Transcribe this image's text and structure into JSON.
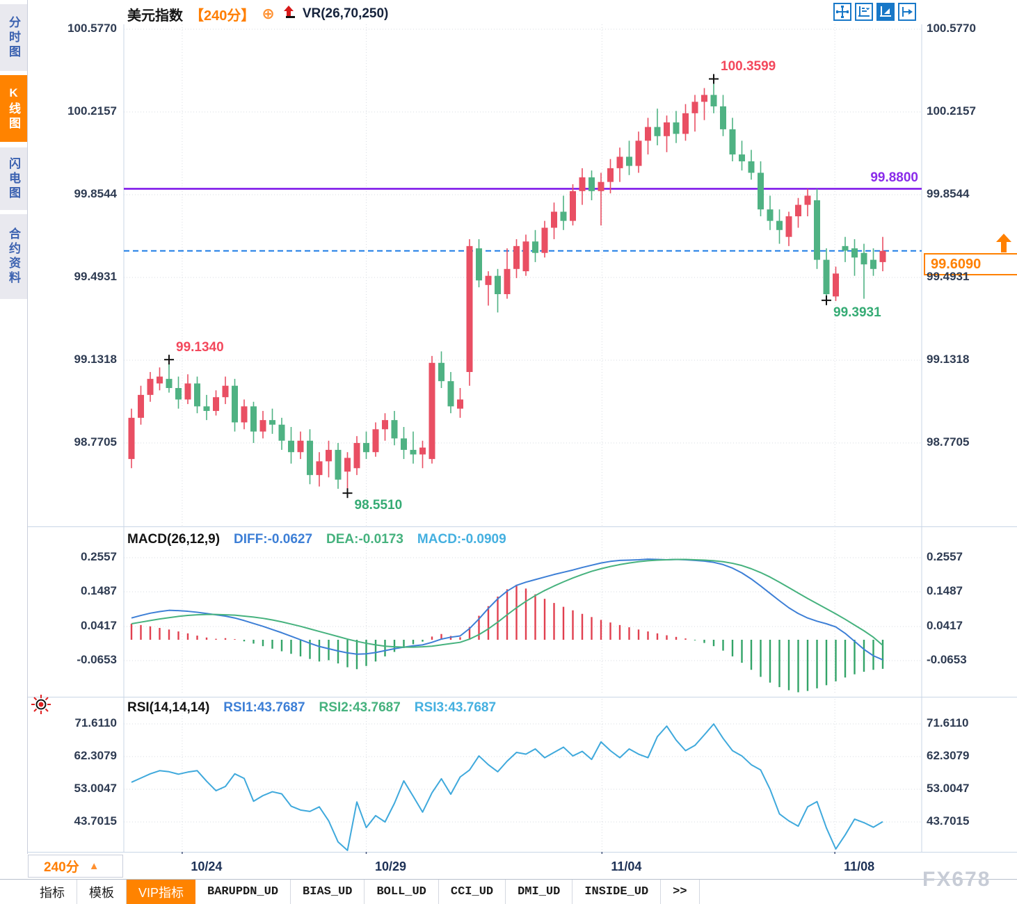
{
  "title": {
    "symbol": "美元指数",
    "period": "【240分】",
    "collapse_icon": "⊕",
    "vr_label": "VR(26,70,250)"
  },
  "sidebar": {
    "tabs": [
      {
        "label": "分时图",
        "active": false
      },
      {
        "label": "K线图",
        "active": true
      },
      {
        "label": "闪电图",
        "active": false
      },
      {
        "label": "合约资料",
        "active": false
      }
    ]
  },
  "toolbar": {
    "buttons": [
      {
        "name": "crosshair-move-icon",
        "active": false
      },
      {
        "name": "axis-scale-icon",
        "active": false
      },
      {
        "name": "auto-fit-icon",
        "active": true
      },
      {
        "name": "shift-right-icon",
        "active": false
      }
    ]
  },
  "main_chart": {
    "y_labels": [
      "100.5770",
      "100.2157",
      "99.8544",
      "99.4931",
      "99.1318",
      "98.7705"
    ],
    "purple_line_label": "99.8800",
    "current_price_tag": "99.6090"
  },
  "macd_panel": {
    "title": "MACD(26,12,9)",
    "diff_label": "DIFF:-0.0627",
    "dea_label": "DEA:-0.0173",
    "macd_label": "MACD:-0.0909",
    "y_labels": [
      "0.2557",
      "0.1487",
      "0.0417",
      "-0.0653"
    ]
  },
  "rsi_panel": {
    "title": "RSI(14,14,14)",
    "rsi1_label": "RSI1:43.7687",
    "rsi2_label": "RSI2:43.7687",
    "rsi3_label": "RSI3:43.7687",
    "y_labels": [
      "71.6110",
      "62.3079",
      "53.0047",
      "43.7015"
    ]
  },
  "bottom_bar": {
    "period_label": "240分",
    "tabs": [
      {
        "label": "指标",
        "mono": false,
        "active": false
      },
      {
        "label": "模板",
        "mono": false,
        "active": false
      },
      {
        "label": "VIP指标",
        "mono": false,
        "active": true
      },
      {
        "label": "BARUPDN_UD",
        "mono": true,
        "active": false
      },
      {
        "label": "BIAS_UD",
        "mono": true,
        "active": false
      },
      {
        "label": "BOLL_UD",
        "mono": true,
        "active": false
      },
      {
        "label": "CCI_UD",
        "mono": true,
        "active": false
      },
      {
        "label": "DMI_UD",
        "mono": true,
        "active": false
      },
      {
        "label": "INSIDE_UD",
        "mono": true,
        "active": false
      },
      {
        "label": ">>",
        "mono": true,
        "active": false
      }
    ]
  },
  "watermark": "FX678",
  "colors": {
    "accent_orange": "#ff7e00",
    "candle_up": "#e94f63",
    "candle_down": "#4fb283",
    "macd_bar_up": "#e1404f",
    "macd_bar_down": "#33a468",
    "diff_line": "#3d7fd6",
    "dea_line": "#46b27e",
    "rsi_line": "#3fa9dc",
    "purple_line": "#7a10e8",
    "current_line": "#1b7ce6",
    "grid": "#d7dbe2",
    "border": "#c9d6e6",
    "high_label": "#f3485c",
    "low_label": "#35ab74",
    "icon_blue": "#1878c8",
    "marker": "#111111"
  },
  "chart_data": {
    "type": "candlestick",
    "symbol": "美元指数",
    "interval_minutes": 240,
    "main_axis": {
      "max": 100.577,
      "min": 98.4,
      "tick_values": [
        100.577,
        100.2157,
        99.8544,
        99.4931,
        99.1318,
        98.7705
      ]
    },
    "overlay_lines": [
      {
        "type": "horizontal",
        "value": 99.88,
        "style": "solid-purple"
      },
      {
        "type": "horizontal",
        "value": 99.609,
        "style": "dashed-blue-current-price"
      }
    ],
    "candles_ohlc": [
      [
        98.7,
        98.92,
        98.66,
        98.88
      ],
      [
        98.88,
        99.02,
        98.85,
        98.98
      ],
      [
        98.98,
        99.08,
        98.95,
        99.05
      ],
      [
        99.03,
        99.1,
        99.0,
        99.06
      ],
      [
        99.05,
        99.134,
        98.99,
        99.01
      ],
      [
        99.01,
        99.06,
        98.92,
        98.96
      ],
      [
        98.96,
        99.07,
        98.94,
        99.03
      ],
      [
        99.03,
        99.06,
        98.9,
        98.93
      ],
      [
        98.93,
        98.98,
        98.87,
        98.91
      ],
      [
        98.91,
        99.0,
        98.89,
        98.97
      ],
      [
        98.97,
        99.06,
        98.94,
        99.02
      ],
      [
        99.02,
        99.05,
        98.82,
        98.86
      ],
      [
        98.86,
        98.96,
        98.83,
        98.93
      ],
      [
        98.93,
        98.95,
        98.77,
        98.82
      ],
      [
        98.82,
        98.91,
        98.79,
        98.87
      ],
      [
        98.87,
        98.92,
        98.81,
        98.85
      ],
      [
        98.85,
        98.88,
        98.74,
        98.78
      ],
      [
        98.78,
        98.84,
        98.68,
        98.73
      ],
      [
        98.73,
        98.82,
        98.7,
        98.78
      ],
      [
        98.78,
        98.83,
        98.59,
        98.63
      ],
      [
        98.63,
        98.73,
        98.58,
        98.69
      ],
      [
        98.69,
        98.78,
        98.62,
        98.74
      ],
      [
        98.74,
        98.77,
        98.57,
        98.61
      ],
      [
        98.645,
        98.73,
        98.551,
        98.705
      ],
      [
        98.66,
        98.8,
        98.63,
        98.77
      ],
      [
        98.77,
        98.82,
        98.7,
        98.73
      ],
      [
        98.73,
        98.86,
        98.71,
        98.83
      ],
      [
        98.83,
        98.9,
        98.78,
        98.87
      ],
      [
        98.87,
        98.91,
        98.76,
        98.79
      ],
      [
        98.79,
        98.84,
        98.7,
        98.74
      ],
      [
        98.74,
        98.82,
        98.68,
        98.72
      ],
      [
        98.72,
        98.78,
        98.66,
        98.75
      ],
      [
        98.7,
        99.15,
        98.68,
        99.12
      ],
      [
        99.12,
        99.17,
        99.01,
        99.04
      ],
      [
        99.04,
        99.08,
        98.9,
        98.93
      ],
      [
        98.92,
        99.01,
        98.88,
        98.96
      ],
      [
        99.08,
        99.66,
        99.02,
        99.63
      ],
      [
        99.62,
        99.66,
        99.45,
        99.48
      ],
      [
        99.46,
        99.52,
        99.37,
        99.5
      ],
      [
        99.5,
        99.53,
        99.34,
        99.42
      ],
      [
        99.42,
        99.62,
        99.4,
        99.53
      ],
      [
        99.53,
        99.66,
        99.49,
        99.63
      ],
      [
        99.52,
        99.68,
        99.5,
        99.65
      ],
      [
        99.65,
        99.7,
        99.56,
        99.6
      ],
      [
        99.6,
        99.74,
        99.58,
        99.71
      ],
      [
        99.71,
        99.82,
        99.66,
        99.78
      ],
      [
        99.78,
        99.85,
        99.7,
        99.74
      ],
      [
        99.74,
        99.9,
        99.72,
        99.87
      ],
      [
        99.87,
        99.97,
        99.81,
        99.93
      ],
      [
        99.93,
        99.96,
        99.83,
        99.87
      ],
      [
        99.87,
        99.95,
        99.72,
        99.91
      ],
      [
        99.91,
        100.01,
        99.86,
        99.97
      ],
      [
        99.97,
        100.06,
        99.91,
        100.02
      ],
      [
        100.02,
        100.09,
        99.94,
        99.98
      ],
      [
        99.98,
        100.13,
        99.95,
        100.09
      ],
      [
        100.09,
        100.19,
        100.03,
        100.15
      ],
      [
        100.15,
        100.23,
        100.07,
        100.11
      ],
      [
        100.11,
        100.2,
        100.04,
        100.17
      ],
      [
        100.17,
        100.22,
        100.08,
        100.12
      ],
      [
        100.12,
        100.25,
        100.09,
        100.21
      ],
      [
        100.21,
        100.29,
        100.13,
        100.26
      ],
      [
        100.26,
        100.32,
        100.18,
        100.29
      ],
      [
        100.29,
        100.3599,
        100.21,
        100.24
      ],
      [
        100.24,
        100.29,
        100.11,
        100.14
      ],
      [
        100.14,
        100.19,
        100.0,
        100.03
      ],
      [
        100.03,
        100.09,
        99.96,
        100.0
      ],
      [
        100.0,
        100.05,
        99.92,
        99.95
      ],
      [
        99.95,
        100.0,
        99.76,
        99.79
      ],
      [
        99.79,
        99.85,
        99.7,
        99.74
      ],
      [
        99.74,
        99.79,
        99.64,
        99.7
      ],
      [
        99.67,
        99.78,
        99.63,
        99.76
      ],
      [
        99.76,
        99.84,
        99.71,
        99.81
      ],
      [
        99.81,
        99.88,
        99.76,
        99.85
      ],
      [
        99.83,
        99.88,
        99.53,
        99.57
      ],
      [
        99.57,
        99.62,
        99.3931,
        99.42
      ],
      [
        99.41,
        99.54,
        99.39,
        99.51
      ],
      [
        99.63,
        99.67,
        99.56,
        99.61
      ],
      [
        99.62,
        99.66,
        99.5,
        99.58
      ],
      [
        99.6,
        99.64,
        99.4,
        99.55
      ],
      [
        99.57,
        99.62,
        99.5,
        99.53
      ],
      [
        99.56,
        99.67,
        99.52,
        99.609
      ]
    ],
    "highlights": [
      {
        "index": 4,
        "price": 99.134,
        "label": "99.1340",
        "side": "high"
      },
      {
        "index": 23,
        "price": 98.551,
        "label": "98.5510",
        "side": "low"
      },
      {
        "index": 62,
        "price": 100.3599,
        "label": "100.3599",
        "side": "high"
      },
      {
        "index": 74,
        "price": 99.3931,
        "label": "99.3931",
        "side": "low"
      }
    ],
    "macd": {
      "params": [
        26,
        12,
        9
      ],
      "diff_last": -0.0627,
      "dea_last": -0.0173,
      "macd_last": -0.0909,
      "tick_values": [
        0.2557,
        0.1487,
        0.0417,
        -0.0653
      ],
      "hist": [
        0.05,
        0.046,
        0.042,
        0.037,
        0.032,
        0.026,
        0.02,
        0.013,
        0.007,
        0.003,
        0.005,
        0.002,
        -0.005,
        -0.012,
        -0.02,
        -0.028,
        -0.036,
        -0.044,
        -0.052,
        -0.06,
        -0.068,
        -0.064,
        -0.074,
        -0.086,
        -0.092,
        -0.082,
        -0.068,
        -0.052,
        -0.038,
        -0.026,
        -0.014,
        -0.006,
        0.01,
        0.018,
        0.012,
        0.008,
        0.04,
        0.075,
        0.105,
        0.135,
        0.158,
        0.172,
        0.16,
        0.142,
        0.128,
        0.115,
        0.103,
        0.092,
        0.081,
        0.071,
        0.062,
        0.054,
        0.046,
        0.039,
        0.032,
        0.026,
        0.02,
        0.014,
        0.009,
        0.004,
        -0.002,
        -0.01,
        -0.02,
        -0.034,
        -0.052,
        -0.072,
        -0.094,
        -0.116,
        -0.134,
        -0.148,
        -0.158,
        -0.164,
        -0.16,
        -0.152,
        -0.142,
        -0.13,
        -0.118,
        -0.108,
        -0.1,
        -0.094,
        -0.0909
      ],
      "diff": [
        0.068,
        0.076,
        0.083,
        0.088,
        0.092,
        0.091,
        0.089,
        0.086,
        0.082,
        0.078,
        0.074,
        0.068,
        0.06,
        0.051,
        0.042,
        0.032,
        0.022,
        0.011,
        0.0,
        -0.011,
        -0.021,
        -0.028,
        -0.035,
        -0.041,
        -0.045,
        -0.044,
        -0.04,
        -0.034,
        -0.028,
        -0.023,
        -0.019,
        -0.016,
        -0.008,
        0.002,
        0.008,
        0.012,
        0.035,
        0.065,
        0.098,
        0.128,
        0.152,
        0.17,
        0.18,
        0.188,
        0.196,
        0.204,
        0.211,
        0.218,
        0.226,
        0.233,
        0.24,
        0.245,
        0.248,
        0.249,
        0.25,
        0.252,
        0.251,
        0.25,
        0.251,
        0.25,
        0.248,
        0.246,
        0.242,
        0.235,
        0.224,
        0.209,
        0.19,
        0.168,
        0.145,
        0.122,
        0.1,
        0.082,
        0.068,
        0.058,
        0.05,
        0.04,
        0.02,
        -0.005,
        -0.03,
        -0.05,
        -0.0627
      ],
      "dea": [
        0.05,
        0.055,
        0.06,
        0.065,
        0.069,
        0.073,
        0.076,
        0.078,
        0.079,
        0.079,
        0.078,
        0.077,
        0.074,
        0.071,
        0.067,
        0.062,
        0.056,
        0.049,
        0.042,
        0.034,
        0.026,
        0.018,
        0.01,
        0.002,
        -0.005,
        -0.011,
        -0.016,
        -0.02,
        -0.022,
        -0.023,
        -0.023,
        -0.022,
        -0.02,
        -0.016,
        -0.012,
        -0.008,
        0.002,
        0.016,
        0.034,
        0.055,
        0.078,
        0.1,
        0.12,
        0.138,
        0.154,
        0.168,
        0.181,
        0.193,
        0.204,
        0.214,
        0.222,
        0.229,
        0.235,
        0.24,
        0.244,
        0.247,
        0.249,
        0.25,
        0.251,
        0.251,
        0.25,
        0.249,
        0.247,
        0.244,
        0.239,
        0.232,
        0.222,
        0.21,
        0.196,
        0.18,
        0.163,
        0.146,
        0.129,
        0.113,
        0.097,
        0.081,
        0.064,
        0.046,
        0.028,
        0.008,
        -0.0173
      ]
    },
    "rsi": {
      "params": [
        14,
        14,
        14
      ],
      "rsi1_last": 43.7687,
      "rsi2_last": 43.7687,
      "rsi3_last": 43.7687,
      "tick_values": [
        71.611,
        62.3079,
        53.0047,
        43.7015
      ],
      "values": [
        55.0,
        56.2,
        57.4,
        58.3,
        58.0,
        57.3,
        57.9,
        58.3,
        55.3,
        52.6,
        53.8,
        57.4,
        56.1,
        49.6,
        51.2,
        52.3,
        51.7,
        48.2,
        47.1,
        46.7,
        48.0,
        44.0,
        38.0,
        35.6,
        49.4,
        42.1,
        45.5,
        43.7,
        49.0,
        55.4,
        51.0,
        46.5,
        52.0,
        56.0,
        51.6,
        56.5,
        58.5,
        62.5,
        60.0,
        58.0,
        61.0,
        63.5,
        63.0,
        64.5,
        62.0,
        63.5,
        65.0,
        62.5,
        63.8,
        61.5,
        66.5,
        64.0,
        62.0,
        64.5,
        63.0,
        62.0,
        68.0,
        71.0,
        67.0,
        64.0,
        65.5,
        68.5,
        71.6,
        67.5,
        64.0,
        62.5,
        60.0,
        58.5,
        53.0,
        46.0,
        44.0,
        42.5,
        48.0,
        49.5,
        42.0,
        36.0,
        40.0,
        44.5,
        43.5,
        42.2,
        43.7687
      ]
    },
    "xaxis_ticks": [
      {
        "label": "10/24",
        "candle_index": 5.4
      },
      {
        "label": "10/29",
        "candle_index": 25.0
      },
      {
        "label": "11/04",
        "candle_index": 50.1
      },
      {
        "label": "11/08",
        "candle_index": 74.9
      }
    ]
  }
}
